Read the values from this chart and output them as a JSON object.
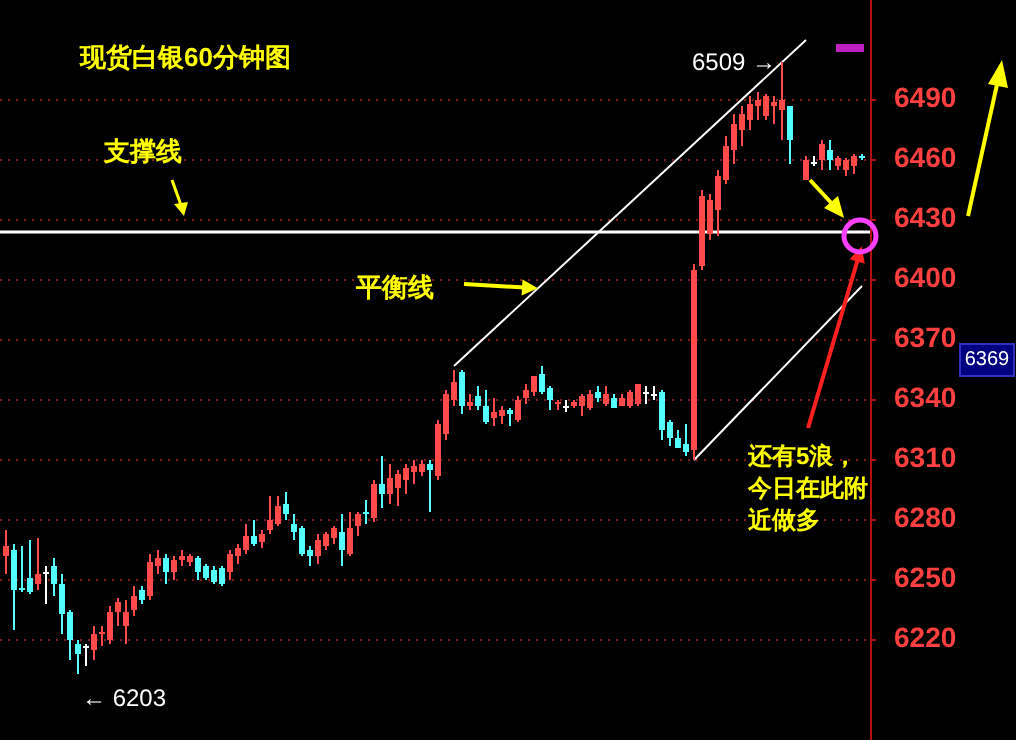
{
  "chart_data": {
    "type": "candlestick",
    "title": "现货白银60分钟图",
    "categories": [
      null,
      null,
      null,
      null,
      null,
      null,
      null,
      null,
      null,
      null,
      null,
      null,
      null,
      null,
      null,
      null,
      null,
      null,
      null,
      null,
      null,
      null,
      null,
      null,
      null,
      null,
      null,
      null,
      null,
      null,
      null,
      null,
      null,
      null,
      null,
      null,
      null,
      null,
      null,
      null,
      null,
      null,
      null,
      null,
      null,
      null,
      null,
      null,
      null,
      null,
      null,
      null,
      null,
      null,
      null,
      null,
      null,
      null,
      null,
      null,
      null,
      null,
      null,
      null,
      null,
      null,
      null,
      null,
      null,
      null,
      null,
      null,
      null,
      null,
      null,
      null,
      null,
      null,
      null,
      null,
      null,
      null,
      null,
      null,
      null,
      null,
      null,
      null,
      null,
      null,
      null,
      null,
      null,
      null,
      null,
      null,
      null,
      null,
      null,
      null,
      null,
      null,
      null,
      null,
      null,
      null,
      null,
      null
    ],
    "ohlc": [
      [
        6262,
        6275,
        6253,
        6267
      ],
      [
        6265,
        6268,
        6225,
        6245
      ],
      [
        6246,
        6267,
        6244,
        6245
      ],
      [
        6251,
        6270,
        6243,
        6244
      ],
      [
        6248,
        6271,
        6245,
        6253
      ],
      [
        6254,
        6257,
        6238,
        6254
      ],
      [
        6257,
        6261,
        6242,
        6248
      ],
      [
        6248,
        6253,
        6223,
        6233
      ],
      [
        6234,
        6235,
        6210,
        6220
      ],
      [
        6218,
        6220,
        6203,
        6213
      ],
      [
        6217,
        6218,
        6207,
        6217
      ],
      [
        6215,
        6227,
        6210,
        6223
      ],
      [
        6223,
        6227,
        6217,
        6224
      ],
      [
        6220,
        6237,
        6218,
        6234
      ],
      [
        6234,
        6241,
        6227,
        6239
      ],
      [
        6227,
        6240,
        6218,
        6234
      ],
      [
        6235,
        6247,
        6232,
        6242
      ],
      [
        6245,
        6247,
        6238,
        6240
      ],
      [
        6242,
        6263,
        6240,
        6259
      ],
      [
        6257,
        6265,
        6253,
        6261
      ],
      [
        6261,
        6263,
        6248,
        6254
      ],
      [
        6254,
        6262,
        6250,
        6260
      ],
      [
        6260,
        6265,
        6257,
        6262
      ],
      [
        6259,
        6263,
        6257,
        6262
      ],
      [
        6261,
        6262,
        6250,
        6254
      ],
      [
        6257,
        6258,
        6250,
        6251
      ],
      [
        6255,
        6257,
        6248,
        6249
      ],
      [
        6256,
        6257,
        6247,
        6248
      ],
      [
        6254,
        6265,
        6250,
        6263
      ],
      [
        6262,
        6268,
        6258,
        6266
      ],
      [
        6265,
        6278,
        6263,
        6272
      ],
      [
        6272,
        6280,
        6267,
        6268
      ],
      [
        6269,
        6275,
        6266,
        6273
      ],
      [
        6275,
        6292,
        6273,
        6280
      ],
      [
        6278,
        6292,
        6277,
        6287
      ],
      [
        6288,
        6294,
        6280,
        6283
      ],
      [
        6278,
        6283,
        6270,
        6274
      ],
      [
        6276,
        6277,
        6262,
        6263
      ],
      [
        6265,
        6267,
        6257,
        6262
      ],
      [
        6262,
        6273,
        6258,
        6270
      ],
      [
        6267,
        6274,
        6265,
        6273
      ],
      [
        6271,
        6277,
        6268,
        6276
      ],
      [
        6274,
        6283,
        6257,
        6265
      ],
      [
        6263,
        6284,
        6262,
        6276
      ],
      [
        6277,
        6284,
        6272,
        6283
      ],
      [
        6284,
        6290,
        6278,
        6283
      ],
      [
        6281,
        6300,
        6279,
        6298
      ],
      [
        6298,
        6312,
        6286,
        6293
      ],
      [
        6293,
        6308,
        6288,
        6301
      ],
      [
        6296,
        6305,
        6287,
        6303
      ],
      [
        6300,
        6308,
        6293,
        6306
      ],
      [
        6304,
        6310,
        6298,
        6307
      ],
      [
        6304,
        6310,
        6302,
        6308
      ],
      [
        6308,
        6310,
        6284,
        6305
      ],
      [
        6302,
        6330,
        6300,
        6328
      ],
      [
        6323,
        6345,
        6320,
        6343
      ],
      [
        6340,
        6355,
        6337,
        6349
      ],
      [
        6354,
        6355,
        6333,
        6337
      ],
      [
        6337,
        6343,
        6335,
        6339
      ],
      [
        6342,
        6347,
        6335,
        6337
      ],
      [
        6337,
        6345,
        6328,
        6329
      ],
      [
        6331,
        6341,
        6327,
        6334
      ],
      [
        6332,
        6337,
        6328,
        6335
      ],
      [
        6335,
        6336,
        6327,
        6333
      ],
      [
        6330,
        6342,
        6329,
        6340
      ],
      [
        6341,
        6348,
        6338,
        6345
      ],
      [
        6344,
        6352,
        6342,
        6352
      ],
      [
        6353,
        6357,
        6343,
        6344
      ],
      [
        6346,
        6347,
        6335,
        6340
      ],
      [
        6338,
        6340,
        6335,
        6339
      ],
      [
        6337,
        6340,
        6334,
        6337
      ],
      [
        6337,
        6340,
        6336,
        6339
      ],
      [
        6337,
        6343,
        6332,
        6342
      ],
      [
        6336,
        6345,
        6335,
        6343
      ],
      [
        6344,
        6347,
        6339,
        6341
      ],
      [
        6338,
        6347,
        6337,
        6343
      ],
      [
        6341,
        6343,
        6336,
        6336
      ],
      [
        6337,
        6343,
        6337,
        6341
      ],
      [
        6337,
        6345,
        6336,
        6344
      ],
      [
        6338,
        6348,
        6337,
        6348
      ],
      [
        6344,
        6347,
        6338,
        6344
      ],
      [
        6343,
        6347,
        6340,
        6343
      ],
      [
        6344,
        6345,
        6320,
        6325
      ],
      [
        6329,
        6330,
        6317,
        6321
      ],
      [
        6321,
        6325,
        6316,
        6316
      ],
      [
        6318,
        6328,
        6312,
        6314
      ],
      [
        6315,
        6408,
        6310,
        6405
      ],
      [
        6407,
        6445,
        6405,
        6442
      ],
      [
        6423,
        6443,
        6420,
        6440
      ],
      [
        6435,
        6455,
        6422,
        6452
      ],
      [
        6450,
        6472,
        6448,
        6467
      ],
      [
        6465,
        6483,
        6458,
        6478
      ],
      [
        6475,
        6487,
        6467,
        6483
      ],
      [
        6480,
        6492,
        6475,
        6488
      ],
      [
        6487,
        6494,
        6480,
        6490
      ],
      [
        6482,
        6493,
        6480,
        6492
      ],
      [
        6487,
        6492,
        6478,
        6489
      ],
      [
        6485,
        6509,
        6470,
        6490
      ],
      [
        6487,
        6487,
        6458,
        6470
      ],
      null,
      [
        6450,
        6462,
        6450,
        6460
      ],
      [
        6459,
        6462,
        6457,
        6459
      ],
      [
        6460,
        6470,
        6455,
        6468
      ],
      [
        6465,
        6470,
        6455,
        6460
      ],
      [
        6457,
        6462,
        6455,
        6461
      ],
      [
        6455,
        6461,
        6452,
        6460
      ],
      [
        6457,
        6463,
        6453,
        6462
      ],
      [
        6462,
        6463,
        6460,
        6461
      ]
    ],
    "series": [
      {
        "type": "line",
        "color": "#ffffff",
        "values": [
          null,
          null,
          null,
          null,
          null,
          null,
          null,
          null,
          null,
          null,
          null,
          null,
          null,
          null,
          null,
          null,
          null,
          null,
          null,
          null,
          null,
          null,
          null,
          null,
          null,
          null,
          null,
          null,
          null,
          null,
          null,
          null,
          null,
          null,
          null,
          null,
          null,
          null,
          null,
          null,
          null,
          null,
          null,
          null,
          null,
          null,
          null,
          null,
          null,
          null,
          null,
          null,
          null,
          null,
          null,
          null,
          6357,
          null,
          null,
          null,
          null,
          null,
          null,
          null,
          null,
          null,
          null,
          null,
          null,
          null,
          null,
          null,
          null,
          null,
          null,
          null,
          null,
          null,
          null,
          null,
          null,
          null,
          null,
          null,
          null,
          null,
          null,
          null,
          null,
          null,
          null,
          null,
          null,
          null,
          null,
          null,
          null,
          null,
          null,
          null,
          6520,
          null,
          null,
          null,
          null,
          null,
          null,
          null
        ]
      },
      {
        "type": "line",
        "color": "#ffffff",
        "values": [
          null,
          null,
          null,
          null,
          null,
          null,
          null,
          null,
          null,
          null,
          null,
          null,
          null,
          null,
          null,
          null,
          null,
          null,
          null,
          null,
          null,
          null,
          null,
          null,
          null,
          null,
          null,
          null,
          null,
          null,
          null,
          null,
          null,
          null,
          null,
          null,
          null,
          null,
          null,
          null,
          null,
          null,
          null,
          null,
          null,
          null,
          null,
          null,
          null,
          null,
          null,
          null,
          null,
          null,
          null,
          null,
          null,
          null,
          null,
          null,
          null,
          null,
          null,
          null,
          null,
          null,
          null,
          null,
          null,
          null,
          null,
          null,
          null,
          null,
          null,
          null,
          null,
          null,
          null,
          null,
          null,
          null,
          null,
          null,
          null,
          null,
          6310,
          null,
          null,
          null,
          null,
          null,
          null,
          null,
          null,
          null,
          null,
          null,
          null,
          null,
          null,
          null,
          null,
          null,
          null,
          null,
          null,
          6397
        ]
      }
    ],
    "ylim": [
      6170,
      6540
    ],
    "yticks": [
      6220,
      6250,
      6280,
      6310,
      6340,
      6370,
      6400,
      6430,
      6460,
      6490
    ],
    "grid": "y",
    "tick_labels": "y",
    "ref_lines": [
      {
        "axis": "y",
        "value": 6424,
        "label": "支撑线",
        "color": "#ffffff"
      }
    ],
    "annotations": [
      "平衡线",
      "还有5浪，今日在此附近做多",
      "6509 →",
      "← 6203",
      "6369"
    ]
  }
}
